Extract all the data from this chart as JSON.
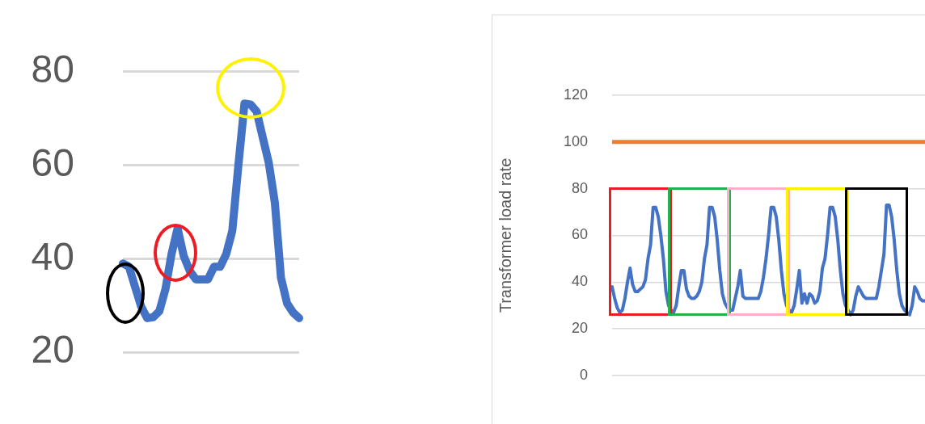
{
  "chart_data": [
    {
      "type": "line",
      "categories": [
        null,
        null,
        null,
        null,
        null,
        null,
        null,
        null,
        null,
        null,
        null,
        null,
        null,
        null,
        null,
        null,
        null,
        null,
        null,
        null,
        null,
        null,
        null,
        null,
        null,
        null,
        null,
        null,
        null,
        null
      ],
      "series": [
        {
          "color": "#4472c4",
          "values": [
            39,
            38.3,
            34,
            29.8,
            27.3,
            27.5,
            28.8,
            33.5,
            41,
            46.5,
            40.6,
            37.4,
            35.6,
            35.6,
            35.6,
            38.3,
            38.3,
            41,
            46,
            60,
            73.2,
            73,
            71.5,
            66,
            60.5,
            52,
            36,
            30.5,
            28.5,
            27.3
          ]
        }
      ],
      "ylim": [
        20,
        80
      ],
      "yticks": [
        20,
        40,
        60,
        80
      ],
      "grid": "y",
      "tick_labels": "y",
      "marker": "none"
    },
    {
      "type": "line",
      "ylabel": "Transformer load rate",
      "categories": [
        null,
        null,
        null,
        null,
        null,
        null,
        null,
        null,
        null,
        null,
        null,
        null,
        null,
        null,
        null,
        null,
        null,
        null,
        null,
        null,
        null,
        null,
        null,
        null,
        null,
        null,
        null,
        null,
        null,
        null,
        null,
        null,
        null,
        null,
        null,
        null,
        null,
        null,
        null,
        null,
        null,
        null,
        null,
        null,
        null,
        null,
        null,
        null,
        null,
        null,
        null,
        null,
        null,
        null,
        null,
        null,
        null,
        null,
        null,
        null,
        null,
        null,
        null,
        null,
        null,
        null,
        null,
        null,
        null,
        null,
        null,
        null,
        null,
        null,
        null,
        null,
        null,
        null,
        null,
        null,
        null,
        null,
        null,
        null,
        null,
        null,
        null,
        null,
        null,
        null,
        null,
        null,
        null,
        null,
        null,
        null,
        null,
        null,
        null,
        null,
        null,
        null,
        null,
        null,
        null,
        null,
        null,
        null,
        null,
        null,
        null,
        null,
        null,
        null,
        null,
        null,
        null,
        null,
        null,
        null,
        null,
        null,
        null
      ],
      "series": [
        {
          "color": "#4472c4",
          "values": [
            38,
            33,
            29,
            27,
            28,
            33,
            40,
            46,
            39,
            36,
            36,
            37,
            38,
            41,
            50,
            56,
            72,
            72,
            68,
            60,
            50,
            36,
            30,
            28,
            27,
            30,
            38,
            45,
            45,
            37,
            34,
            33,
            33,
            34,
            36,
            40,
            50,
            56,
            72,
            72,
            68,
            58,
            45,
            35,
            31,
            29,
            28,
            28,
            33,
            38,
            45,
            34,
            33,
            33,
            33,
            33,
            33,
            33,
            36,
            42,
            50,
            60,
            72,
            72,
            68,
            58,
            45,
            35,
            30,
            28,
            27,
            30,
            37,
            45,
            31,
            35,
            31,
            35,
            34,
            31,
            32,
            36,
            46,
            50,
            60,
            72,
            72,
            68,
            58,
            45,
            35,
            30,
            28,
            26,
            28,
            34,
            38,
            36,
            34,
            33,
            33,
            33,
            33,
            33,
            38,
            45,
            52,
            73,
            73,
            68,
            58,
            45,
            35,
            30,
            28,
            27,
            26,
            30,
            38,
            36,
            33,
            32,
            32
          ]
        }
      ],
      "ylim": [
        0,
        120
      ],
      "yticks": [
        0,
        20,
        40,
        60,
        80,
        100,
        120
      ],
      "grid": "y",
      "tick_labels": "y",
      "marker": "none",
      "ref_lines": [
        {
          "axis": "y",
          "value": 100,
          "color": "#ed7d31"
        }
      ]
    }
  ]
}
